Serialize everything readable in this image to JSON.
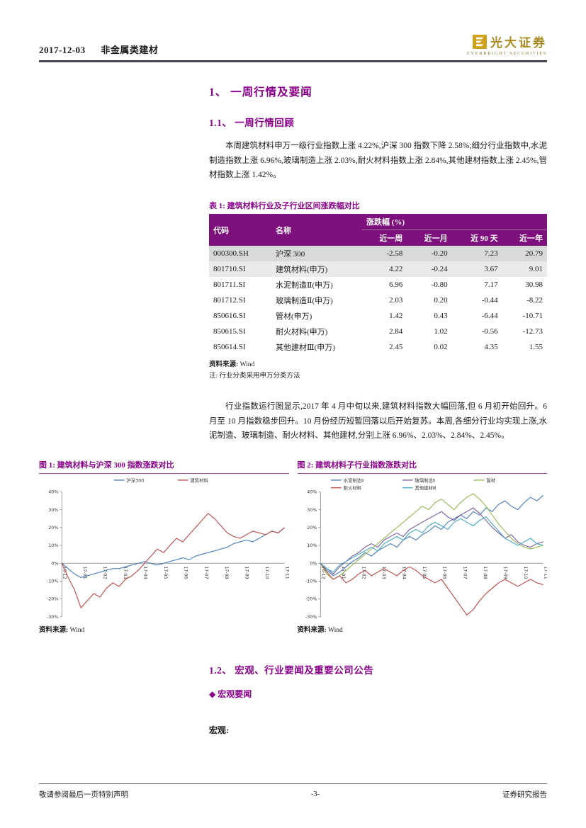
{
  "header": {
    "date": "2017-12-03",
    "category": "非金属类建材",
    "logo_name": "光大证券",
    "logo_sub": "EVERBRIGHT SECURITIES"
  },
  "sections": {
    "s1_title": "1、 一周行情及要闻",
    "s11_title": "1.1、 一周行情回顾",
    "para1": "本周建筑材料申万一级行业指数上涨 4.22%,沪深 300 指数下降 2.58%;细分行业指数中,水泥制造指数上涨 6.96%,玻璃制造上涨 2.03%,耐火材料指数上涨 2.84%,其他建材指数上涨 2.45%,管材指数上涨 1.42%。",
    "para2": "行业指数运行图显示,2017 年 4 月中旬以来,建筑材料指数大幅回落,但 6 月初开始回升。6 月至 10 月指数稳步回升。10 月份经历短暂回落以后开始复苏。本周,各细分行业均实现上涨,水泥制造、玻璃制造、耐火材料、其他建材,分别上涨 6.96%、2.03%、2.84%、2.45%。",
    "s12_title": "1.2、 宏观、行业要闻及重要公司公告",
    "macro_news_title": "◆ 宏观要闻",
    "macro_label": "宏观:"
  },
  "table": {
    "title": "表 1: 建筑材料行业及子行业区间涨跌幅对比",
    "col_code": "代码",
    "col_name": "名称",
    "col_group": "涨跌幅 (%)",
    "subcols": [
      "近一周",
      "近一月",
      "近 90 天",
      "近一年"
    ],
    "rows": [
      {
        "code": "000300.SH",
        "name": "沪深 300",
        "w": "-2.58",
        "m": "-0.20",
        "d90": "7.23",
        "y": "20.79"
      },
      {
        "code": "801710.SI",
        "name": "建筑材料(申万)",
        "w": "4.22",
        "m": "-0.24",
        "d90": "3.67",
        "y": "9.01"
      },
      {
        "code": "801711.SI",
        "name": "水泥制造Ⅱ(申万)",
        "w": "6.96",
        "m": "-0.80",
        "d90": "7.17",
        "y": "30.98"
      },
      {
        "code": "801712.SI",
        "name": "玻璃制造Ⅱ(申万)",
        "w": "2.03",
        "m": "0.20",
        "d90": "-0.44",
        "y": "-8.22"
      },
      {
        "code": "850616.SI",
        "name": "管材(申万)",
        "w": "1.42",
        "m": "0.43",
        "d90": "-6.44",
        "y": "-10.71"
      },
      {
        "code": "850615.SI",
        "name": "耐火材料(申万)",
        "w": "2.84",
        "m": "1.02",
        "d90": "-0.56",
        "y": "-12.73"
      },
      {
        "code": "850614.SI",
        "name": "其他建材Ⅲ(申万)",
        "w": "2.45",
        "m": "0.02",
        "d90": "4.35",
        "y": "1.55"
      }
    ],
    "source_label": "资料来源:",
    "source": "Wind",
    "note": "注: 行业分类采用申万分类方法"
  },
  "chart_data": [
    {
      "type": "line",
      "title": "图 1: 建筑材料与沪深 300 指数涨跌对比",
      "source_label": "资料来源:",
      "source": "Wind",
      "ylim": [
        -30,
        40
      ],
      "ytick": 10,
      "grid": false,
      "legend_position": "top-center",
      "legend": {
        "x": 108,
        "dx": 92,
        "cols": 2
      },
      "x_labels": [
        "16-12",
        "17-01",
        "17-02",
        "17-03",
        "17-04",
        "17-05",
        "17-06",
        "17-07",
        "17-08",
        "17-09",
        "17-10",
        "17-11"
      ],
      "series": [
        {
          "name": "沪深300",
          "color": "#4F81BD",
          "values": [
            0,
            -3,
            -6,
            -8,
            -7,
            -6,
            -5,
            -4,
            -3,
            -3,
            -2,
            -1,
            0,
            1,
            0,
            -1,
            0,
            1,
            2,
            3,
            2,
            4,
            5,
            6,
            7,
            8,
            9,
            11,
            12,
            13,
            12,
            14,
            16,
            18,
            17,
            20
          ]
        },
        {
          "name": "建筑材料",
          "color": "#C0504D",
          "values": [
            0,
            -8,
            -15,
            -25,
            -21,
            -17,
            -19,
            -14,
            -11,
            -13,
            -9,
            -7,
            -4,
            0,
            4,
            8,
            6,
            10,
            14,
            12,
            16,
            20,
            24,
            28,
            25,
            21,
            17,
            15,
            14,
            16,
            18,
            17,
            16,
            18,
            17,
            20
          ]
        }
      ]
    },
    {
      "type": "line",
      "title": "图 2: 建筑材料子行业指数涨跌对比",
      "source_label": "资料来源:",
      "source": "Wind",
      "ylim": [
        -30,
        40
      ],
      "ytick": 10,
      "grid": false,
      "legend_position": "top-left",
      "legend": {
        "x": 48,
        "dx": 103,
        "cols": 3
      },
      "x_labels": [
        "16-12",
        "17-01",
        "17-02",
        "17-03",
        "17-04",
        "17-05",
        "17-06",
        "17-07",
        "17-08",
        "17-09",
        "17-10",
        "17-11"
      ],
      "series": [
        {
          "name": "水泥制造Ⅱ",
          "color": "#4F81BD",
          "values": [
            0,
            -4,
            -7,
            -5,
            -2,
            1,
            3,
            6,
            4,
            7,
            9,
            11,
            9,
            13,
            15,
            13,
            16,
            18,
            21,
            19,
            23,
            25,
            27,
            25,
            29,
            27,
            31,
            29,
            33,
            35,
            32,
            30,
            34,
            37,
            35,
            38
          ]
        },
        {
          "name": "玻璃制造Ⅱ",
          "color": "#8064A2",
          "values": [
            0,
            -3,
            -6,
            -2,
            1,
            4,
            6,
            9,
            11,
            9,
            13,
            15,
            17,
            15,
            19,
            21,
            23,
            25,
            27,
            29,
            26,
            24,
            27,
            29,
            31,
            28,
            24,
            20,
            17,
            14,
            16,
            12,
            10,
            9,
            11,
            12
          ]
        },
        {
          "name": "管材",
          "color": "#9BBB59",
          "values": [
            0,
            -6,
            -9,
            -7,
            -4,
            -1,
            2,
            5,
            8,
            11,
            14,
            17,
            20,
            23,
            26,
            29,
            32,
            30,
            34,
            36,
            33,
            30,
            34,
            37,
            39,
            36,
            32,
            27,
            22,
            18,
            14,
            11,
            9,
            8,
            9,
            10
          ]
        },
        {
          "name": "耐火材料",
          "color": "#C0504D",
          "values": [
            0,
            -5,
            -9,
            -7,
            -11,
            -9,
            -6,
            -4,
            -7,
            -5,
            -3,
            -5,
            -7,
            -4,
            -2,
            -4,
            -7,
            -9,
            -11,
            -9,
            -14,
            -19,
            -24,
            -29,
            -26,
            -21,
            -17,
            -14,
            -11,
            -9,
            -11,
            -13,
            -11,
            -9,
            -11,
            -12
          ]
        },
        {
          "name": "其他建材Ⅲ",
          "color": "#4BACC6",
          "values": [
            0,
            -3,
            -5,
            -1,
            1,
            3,
            5,
            7,
            9,
            7,
            11,
            13,
            15,
            13,
            17,
            19,
            17,
            21,
            23,
            21,
            19,
            23,
            25,
            23,
            21,
            24,
            26,
            22,
            18,
            14,
            12,
            10,
            12,
            14,
            11,
            10
          ]
        }
      ]
    }
  ],
  "footer": {
    "left": "敬请参阅最后一页特别声明",
    "center": "-3-",
    "right": "证券研究报告"
  }
}
